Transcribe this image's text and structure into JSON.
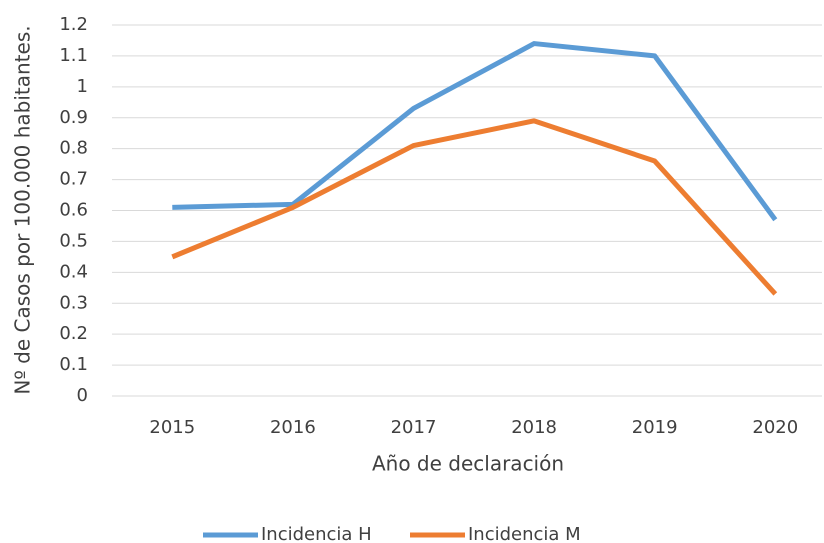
{
  "chart_data": {
    "type": "line",
    "xlabel": "Año de declaración",
    "ylabel": "Nº de Casos por 100.000 habitantes.",
    "categories": [
      "2015",
      "2016",
      "2017",
      "2018",
      "2019",
      "2020"
    ],
    "series": [
      {
        "name": "Incidencia H",
        "color": "#5b9bd5",
        "values": [
          0.61,
          0.62,
          0.93,
          1.14,
          1.1,
          0.57
        ]
      },
      {
        "name": "Incidencia M",
        "color": "#ed7d31",
        "values": [
          0.45,
          0.61,
          0.81,
          0.89,
          0.76,
          0.33
        ]
      }
    ],
    "ylim": [
      0,
      1.2
    ],
    "yticks": [
      0,
      0.1,
      0.2,
      0.3,
      0.4,
      0.5,
      0.6,
      0.7,
      0.8,
      0.9,
      1,
      1.1,
      1.2
    ],
    "grid": true,
    "legend": "bottom"
  }
}
